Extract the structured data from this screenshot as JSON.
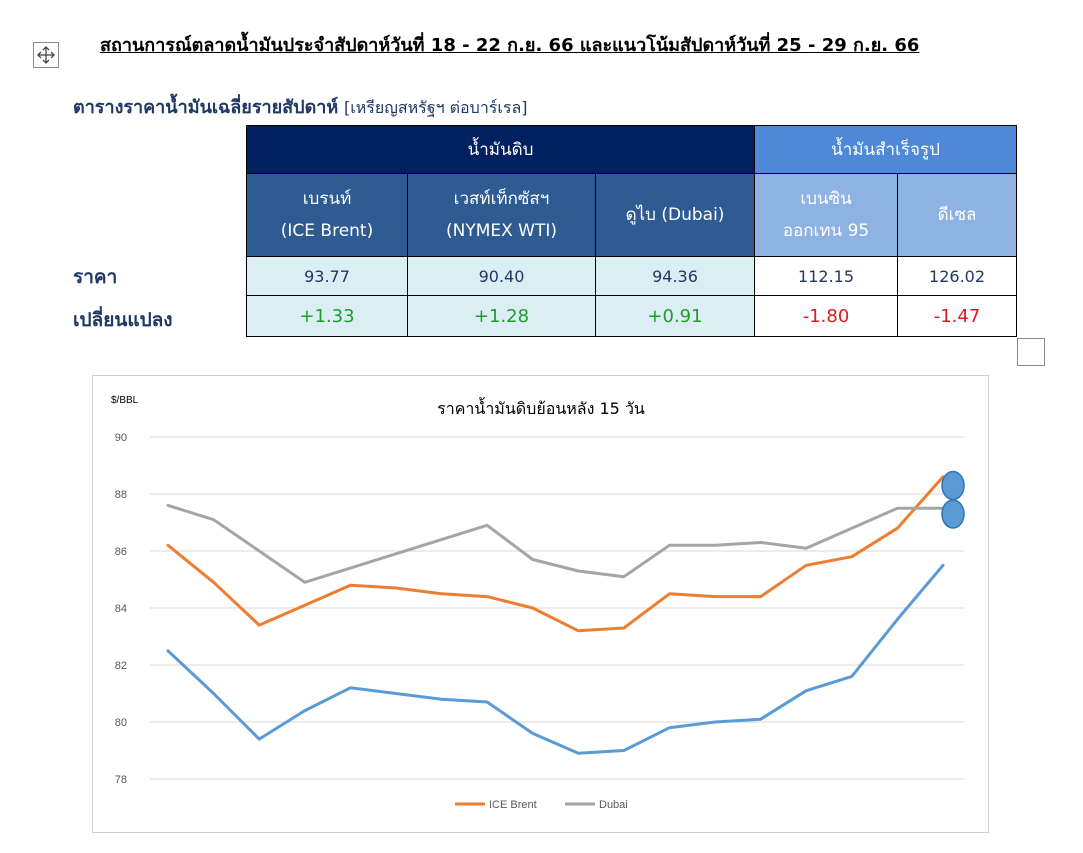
{
  "page": {
    "title": "สถานการณ์ตลาดน้ำมันประจำสัปดาห์วันที่ 18 - 22 ก.ย. 66 และแนวโน้มสัปดาห์วันที่ 25 - 29 ก.ย. 66",
    "move_handle_icon": "move-arrows-icon",
    "resize_handle_icon": "resize-handle-icon"
  },
  "table": {
    "heading": "ตารางราคาน้ำมันเฉลี่ยรายสัปดาห์",
    "unit": "[เหรียญสหรัฐฯ ต่อบาร์เรล]",
    "group_crude": "น้ำมันดิบ",
    "group_refined": "น้ำมันสำเร็จรูป",
    "columns": [
      {
        "line1": "เบรนท์",
        "line2": "(ICE Brent)"
      },
      {
        "line1": "เวสท์เท็กซัสฯ",
        "line2": "(NYMEX WTI)"
      },
      {
        "line1": "ดูไบ (Dubai)",
        "line2": ""
      },
      {
        "line1": "เบนซิน",
        "line2": "ออกเทน  95"
      },
      {
        "line1": "ดีเซล",
        "line2": ""
      }
    ],
    "row_price_label": "ราคา",
    "row_change_label": "เปลี่ยนแปลง",
    "prices": [
      "93.77",
      "90.40",
      "94.36",
      "112.15",
      "126.02"
    ],
    "changes": [
      "+1.33",
      "+1.28",
      "+0.91",
      "-1.80",
      "-1.47"
    ],
    "colors": {
      "crude_header": "#002060",
      "refined_header": "#4f88d6",
      "up": "#1e9e28",
      "down": "#e0191c"
    }
  },
  "chart_data": {
    "type": "line",
    "title": "ราคาน้ำมันดิบย้อนหลัง 15 วัน",
    "ylabel": "$/BBL",
    "ylim": [
      78,
      90
    ],
    "yticks": [
      "90",
      "88",
      "86",
      "84",
      "82",
      "80",
      "78"
    ],
    "grid": true,
    "legend_position": "bottom",
    "series": [
      {
        "name": "",
        "color": "#5b9bd5",
        "values": [
          82.5,
          81.0,
          79.4,
          80.4,
          81.2,
          81.0,
          80.8,
          80.7,
          79.6,
          78.9,
          79.0,
          79.8,
          80.0,
          80.1,
          81.1,
          81.6,
          83.6,
          85.5
        ]
      },
      {
        "name": "ICE Brent",
        "color": "#ed7d31",
        "values": [
          86.2,
          84.9,
          83.4,
          84.1,
          84.8,
          84.7,
          84.5,
          84.4,
          84.0,
          83.2,
          83.3,
          84.5,
          84.4,
          84.4,
          85.5,
          85.8,
          86.8,
          88.6
        ]
      },
      {
        "name": "Dubai",
        "color": "#a5a5a5",
        "values": [
          87.6,
          87.1,
          86.0,
          84.9,
          85.4,
          85.9,
          86.4,
          86.9,
          85.7,
          85.3,
          85.1,
          86.2,
          86.2,
          86.3,
          86.1,
          86.8,
          87.5,
          87.5
        ]
      }
    ],
    "markers": [
      {
        "series": "ICE Brent",
        "value": 88.3,
        "color": "#5b9bd5"
      },
      {
        "series": "Dubai",
        "value": 87.3,
        "color": "#5b9bd5"
      }
    ]
  }
}
